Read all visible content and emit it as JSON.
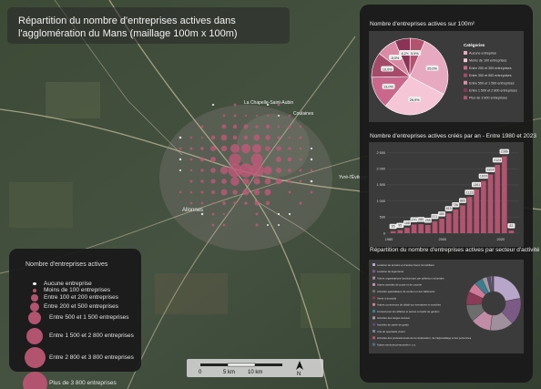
{
  "title": "Répartition du nombre d'entreprises actives dans l'agglomération du Mans (maillage 100m x 100m)",
  "legend": {
    "title": "Nombre d'entreprises actives",
    "items": [
      {
        "label": "Aucune entreprise",
        "symbol": "dot-white"
      },
      {
        "label": "Moins de 100 entreprises",
        "symbol": "dot-tiny"
      },
      {
        "label": "Entre 100 et 200 entreprises",
        "symbol": "circle-xs"
      },
      {
        "label": "Entre 200 et 500 entreprises",
        "symbol": "circle-s"
      },
      {
        "label": "Entre 500 et 1 500 entreprises",
        "symbol": "circle-m"
      },
      {
        "label": "Entre 1 500 et 2 800 entreprises",
        "symbol": "circle-l"
      },
      {
        "label": "Entre 2 800 et 3 800 entreprises",
        "symbol": "circle-xl"
      },
      {
        "label": "Plus de 3 800 entreprises",
        "symbol": "circle-xxl"
      }
    ]
  },
  "map_labels": {
    "alonnes": "Allonnes",
    "la_chapelle": "La Chapelle-Saint-Aubin",
    "coulaines": "Coulaines",
    "yvre": "Yvré-l'Évêque"
  },
  "scale": {
    "labels": [
      "0",
      "5 km",
      "10 km"
    ],
    "north": "N"
  },
  "colors": {
    "accent": "#b25470",
    "dark_panel": "#181818",
    "map_green": "#3a4a33"
  },
  "chart_data": [
    {
      "type": "pie",
      "title": "Nombre d'entreprises actives sur 100m²",
      "legend_title": "Catégories",
      "legend": [
        "Aucune entreprise",
        "Moins de 100 entreprises",
        "Entre 200 et 300 entreprises",
        "Entre 300 et 500 entreprises",
        "Entre 500 et 1 500 entreprises",
        "Entre 1 500 et 2 800 entreprises",
        "Plus de 3 800 entreprises"
      ],
      "slice_labels": [
        "25,0%",
        "26,9%",
        "13,0%",
        "10,0%",
        "8,0%",
        "6,2%",
        "5,9%"
      ],
      "values": [
        25.0,
        26.9,
        13.0,
        10.0,
        8.0,
        6.2,
        5.9
      ],
      "colors": [
        "#e7a9bf",
        "#f5c7d6",
        "#c9688b",
        "#a44b6a",
        "#d98aa5",
        "#8a3356",
        "#b25470"
      ]
    },
    {
      "type": "bar",
      "title": "Nombre d'entreprises actives créés par an - Entre 1980 et 2023",
      "y_ticks": [
        "0",
        "500",
        "1 000",
        "1 500",
        "2 000",
        "2 500"
      ],
      "x_ticks": [
        "1980",
        "2000",
        "2020"
      ],
      "ylim": [
        0,
        2600
      ],
      "labels": [
        "65",
        "95",
        "168",
        "270",
        "280",
        "255",
        "371",
        "450",
        "615",
        "736",
        "865",
        "1123",
        "1361",
        "1620",
        "1824",
        "2124",
        "2386",
        "83"
      ],
      "values": [
        65,
        95,
        168,
        270,
        280,
        255,
        371,
        450,
        615,
        736,
        865,
        1123,
        1361,
        1620,
        1824,
        2124,
        2386,
        83
      ]
    },
    {
      "type": "pie",
      "title": "Répartition du nombre d'entreprises actives par secteur d'activité",
      "legend": [
        "Location de terrains et d'autres biens immobiliers",
        "Location de logements",
        "Autres organisations fonctionnant par adhésion volontaire",
        "Autres activités de poste et de courrier",
        "Activités spécialisées de soutien et aux bâtiments",
        "Vente à domicile",
        "Autres commerces de détail sur éventaires et marchés",
        "Conseil pour les affaires et autres conseils de gestion",
        "Activités des sièges sociaux",
        "Activités de santé de garde",
        "Arts du spectacle vivant",
        "Activités des professionnels de la rééducation, de l'appareillage et les personnes",
        "Autres services personnels n.c.a."
      ],
      "values": [
        22,
        16,
        14,
        12,
        10,
        8,
        6,
        5,
        3,
        2,
        1,
        0.6,
        0.4
      ],
      "colors": [
        "#b7a6c9",
        "#7b5b86",
        "#a08f9c",
        "#c18ca6",
        "#6d6d6d",
        "#8a3b57",
        "#cf7a96",
        "#3c7d8f",
        "#9d9d9d",
        "#5e4a74",
        "#7d7d9a",
        "#b25470",
        "#4c6a8a"
      ]
    }
  ]
}
